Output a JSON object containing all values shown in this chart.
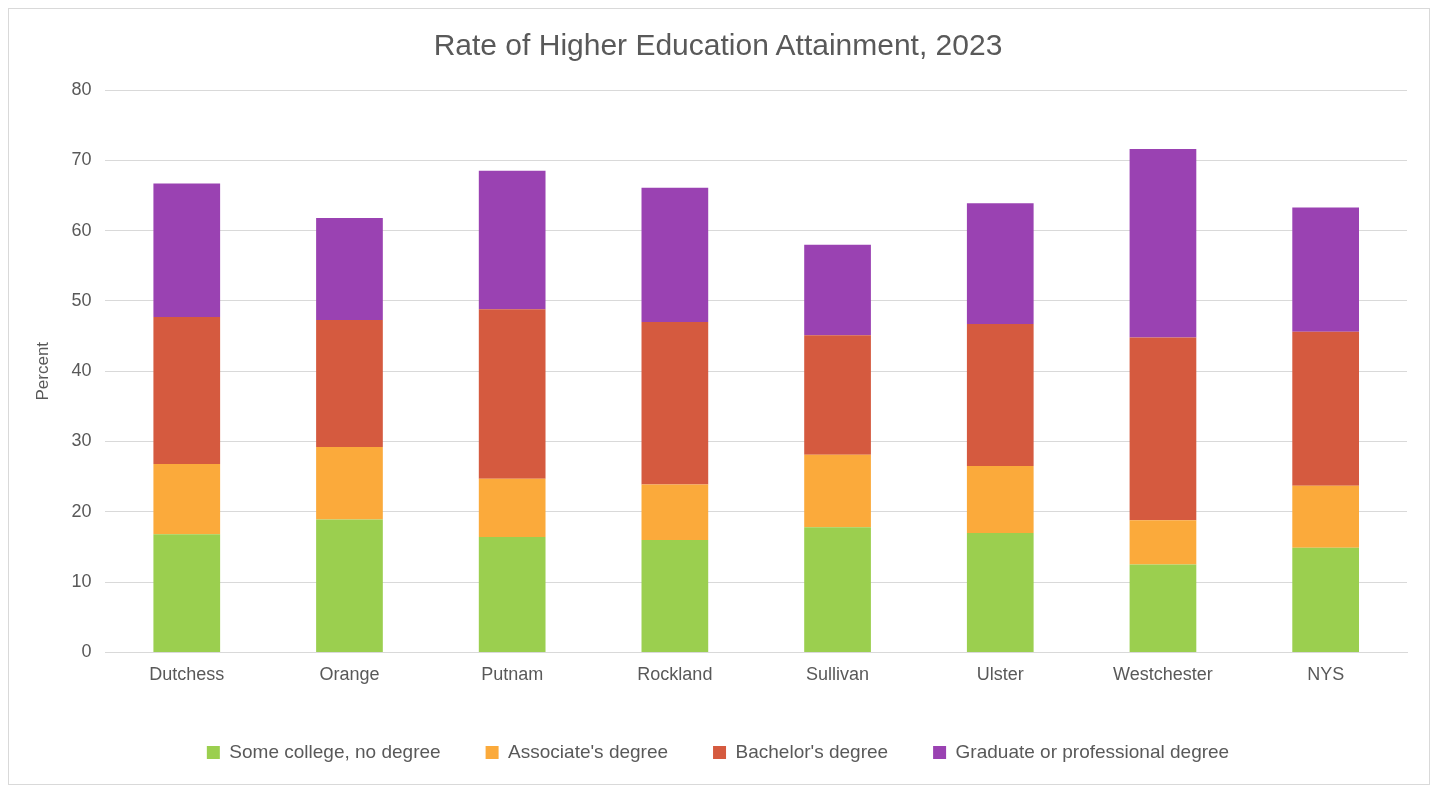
{
  "chart_data": {
    "type": "bar",
    "title": "Rate of Higher Education Attainment, 2023",
    "ylabel": "Percent",
    "stacked": true,
    "grid": "y",
    "legend": "bottom",
    "categories": [
      "Dutchess",
      "Orange",
      "Putnam",
      "Rockland",
      "Sullivan",
      "Ulster",
      "Westchester",
      "NYS"
    ],
    "ylim": [
      0,
      80
    ],
    "yticks": [
      0,
      10,
      20,
      30,
      40,
      50,
      60,
      70,
      80
    ],
    "series": [
      {
        "name": "Some college, no degree",
        "color": "#9bcf4f",
        "values": [
          16.8,
          18.9,
          16.4,
          16.0,
          17.8,
          17.0,
          12.5,
          14.9
        ]
      },
      {
        "name": "Associate's degree",
        "color": "#fbaa3b",
        "values": [
          10.0,
          10.3,
          8.3,
          7.9,
          10.3,
          9.5,
          6.3,
          8.8
        ]
      },
      {
        "name": "Bachelor's degree",
        "color": "#d55a3f",
        "values": [
          20.9,
          18.1,
          24.1,
          23.1,
          17.0,
          20.2,
          26.0,
          21.9
        ]
      },
      {
        "name": "Graduate or professional degree",
        "color": "#9a42b2",
        "values": [
          19.0,
          14.5,
          19.7,
          19.1,
          12.9,
          17.2,
          26.8,
          17.7
        ]
      }
    ]
  }
}
